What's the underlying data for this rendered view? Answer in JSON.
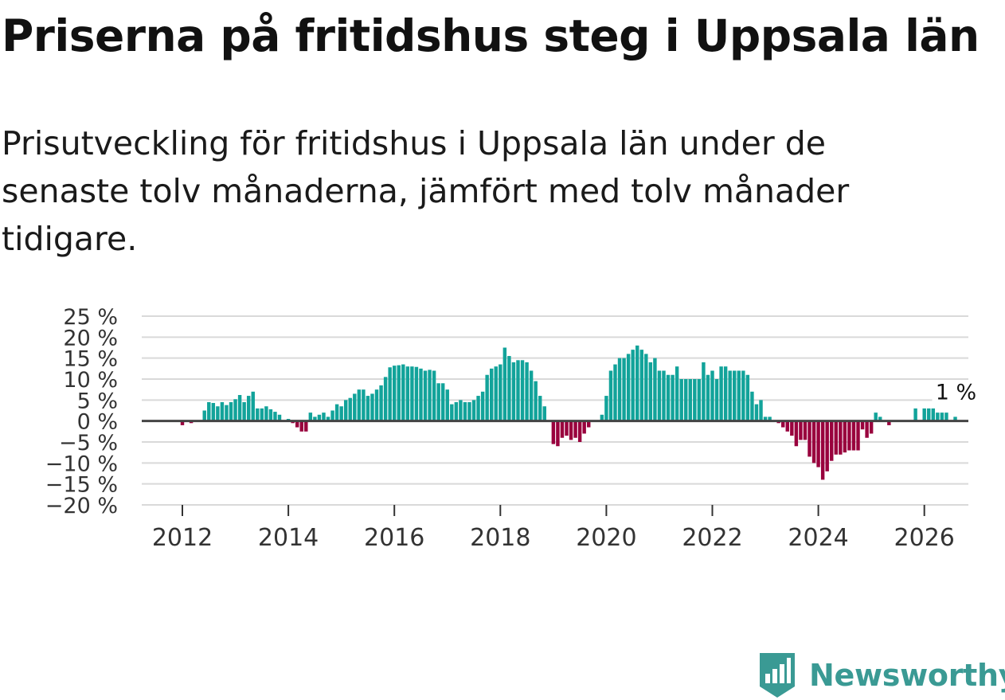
{
  "header": {
    "title": "Priserna på fritidshus steg i Uppsala län",
    "subtitle": "Prisutveckling för fritidshus i Uppsala län under de senaste tolv månaderna, jämfört med tolv månader tidigare."
  },
  "brand": {
    "name": "Newsworthy",
    "color": "#3a9a94",
    "icon": "newsworthy-bar-chart-icon"
  },
  "colors": {
    "positive": "#12a39a",
    "negative": "#99003d",
    "grid": "#d9d9d9",
    "zero_line": "#444444"
  },
  "chart_data": {
    "type": "bar",
    "title": "Priserna på fritidshus steg i Uppsala län",
    "xlabel": "",
    "ylabel": "",
    "x_start": "2012-01",
    "ylim": [
      -20,
      25
    ],
    "y_ticks": [
      25,
      20,
      15,
      10,
      5,
      0,
      -5,
      -10,
      -15,
      -20
    ],
    "y_tick_labels": [
      "25 %",
      "20 %",
      "15 %",
      "10 %",
      "5 %",
      "0 %",
      "−5 %",
      "−10 %",
      "−15 %",
      "−20 %"
    ],
    "x_ticks": [
      2012,
      2014,
      2016,
      2018,
      2020,
      2022,
      2024,
      2026
    ],
    "x_tick_labels": [
      "2012",
      "2014",
      "2016",
      "2018",
      "2020",
      "2022",
      "2024",
      "2026"
    ],
    "annotation": {
      "label": "1 %",
      "value": 1
    },
    "grid": true,
    "values": [
      -1,
      0,
      -0.5,
      0,
      0,
      2.5,
      4.5,
      4.3,
      3.5,
      4.5,
      3.8,
      4.5,
      5.2,
      6.2,
      4.5,
      6,
      7,
      3,
      3,
      3.5,
      2.8,
      2.2,
      1.5,
      0,
      0.5,
      -0.5,
      -1.5,
      -2.5,
      -2.5,
      2,
      1,
      1.5,
      2,
      1,
      2.5,
      4,
      3.5,
      5,
      5.5,
      6.5,
      7.5,
      7.5,
      6,
      6.5,
      7.5,
      8.5,
      10.5,
      12.8,
      13.2,
      13.3,
      13.5,
      13,
      13,
      12.9,
      12.5,
      12,
      12.2,
      12,
      9,
      9,
      7.5,
      4,
      4.5,
      5,
      4.5,
      4.5,
      5,
      6,
      7,
      11,
      12.5,
      13,
      13.5,
      17.5,
      15.5,
      14,
      14.5,
      14.5,
      14,
      12,
      9.5,
      6,
      3.5,
      0,
      -5.5,
      -6,
      -4,
      -3.5,
      -4.5,
      -4,
      -5,
      -3,
      -1.5,
      0,
      0,
      1.5,
      6,
      12,
      13.5,
      15,
      15,
      16,
      17,
      18,
      17,
      16,
      14,
      15,
      12,
      12,
      11,
      11,
      13,
      10,
      10,
      10,
      10,
      10,
      14,
      11,
      12,
      10,
      13,
      13,
      12,
      12,
      12,
      12,
      11,
      7,
      4,
      5,
      1,
      1,
      0,
      -0.5,
      -1.5,
      -2.5,
      -3.5,
      -6,
      -4.5,
      -4.5,
      -8.5,
      -10,
      -11,
      -14,
      -12,
      -9.5,
      -8,
      -8,
      -7.5,
      -7,
      -7,
      -7,
      -2,
      -4,
      -3,
      2,
      1,
      0,
      -1,
      0,
      0,
      0,
      0,
      0,
      3,
      0,
      3,
      3,
      3,
      2,
      2,
      2,
      0,
      1
    ]
  }
}
